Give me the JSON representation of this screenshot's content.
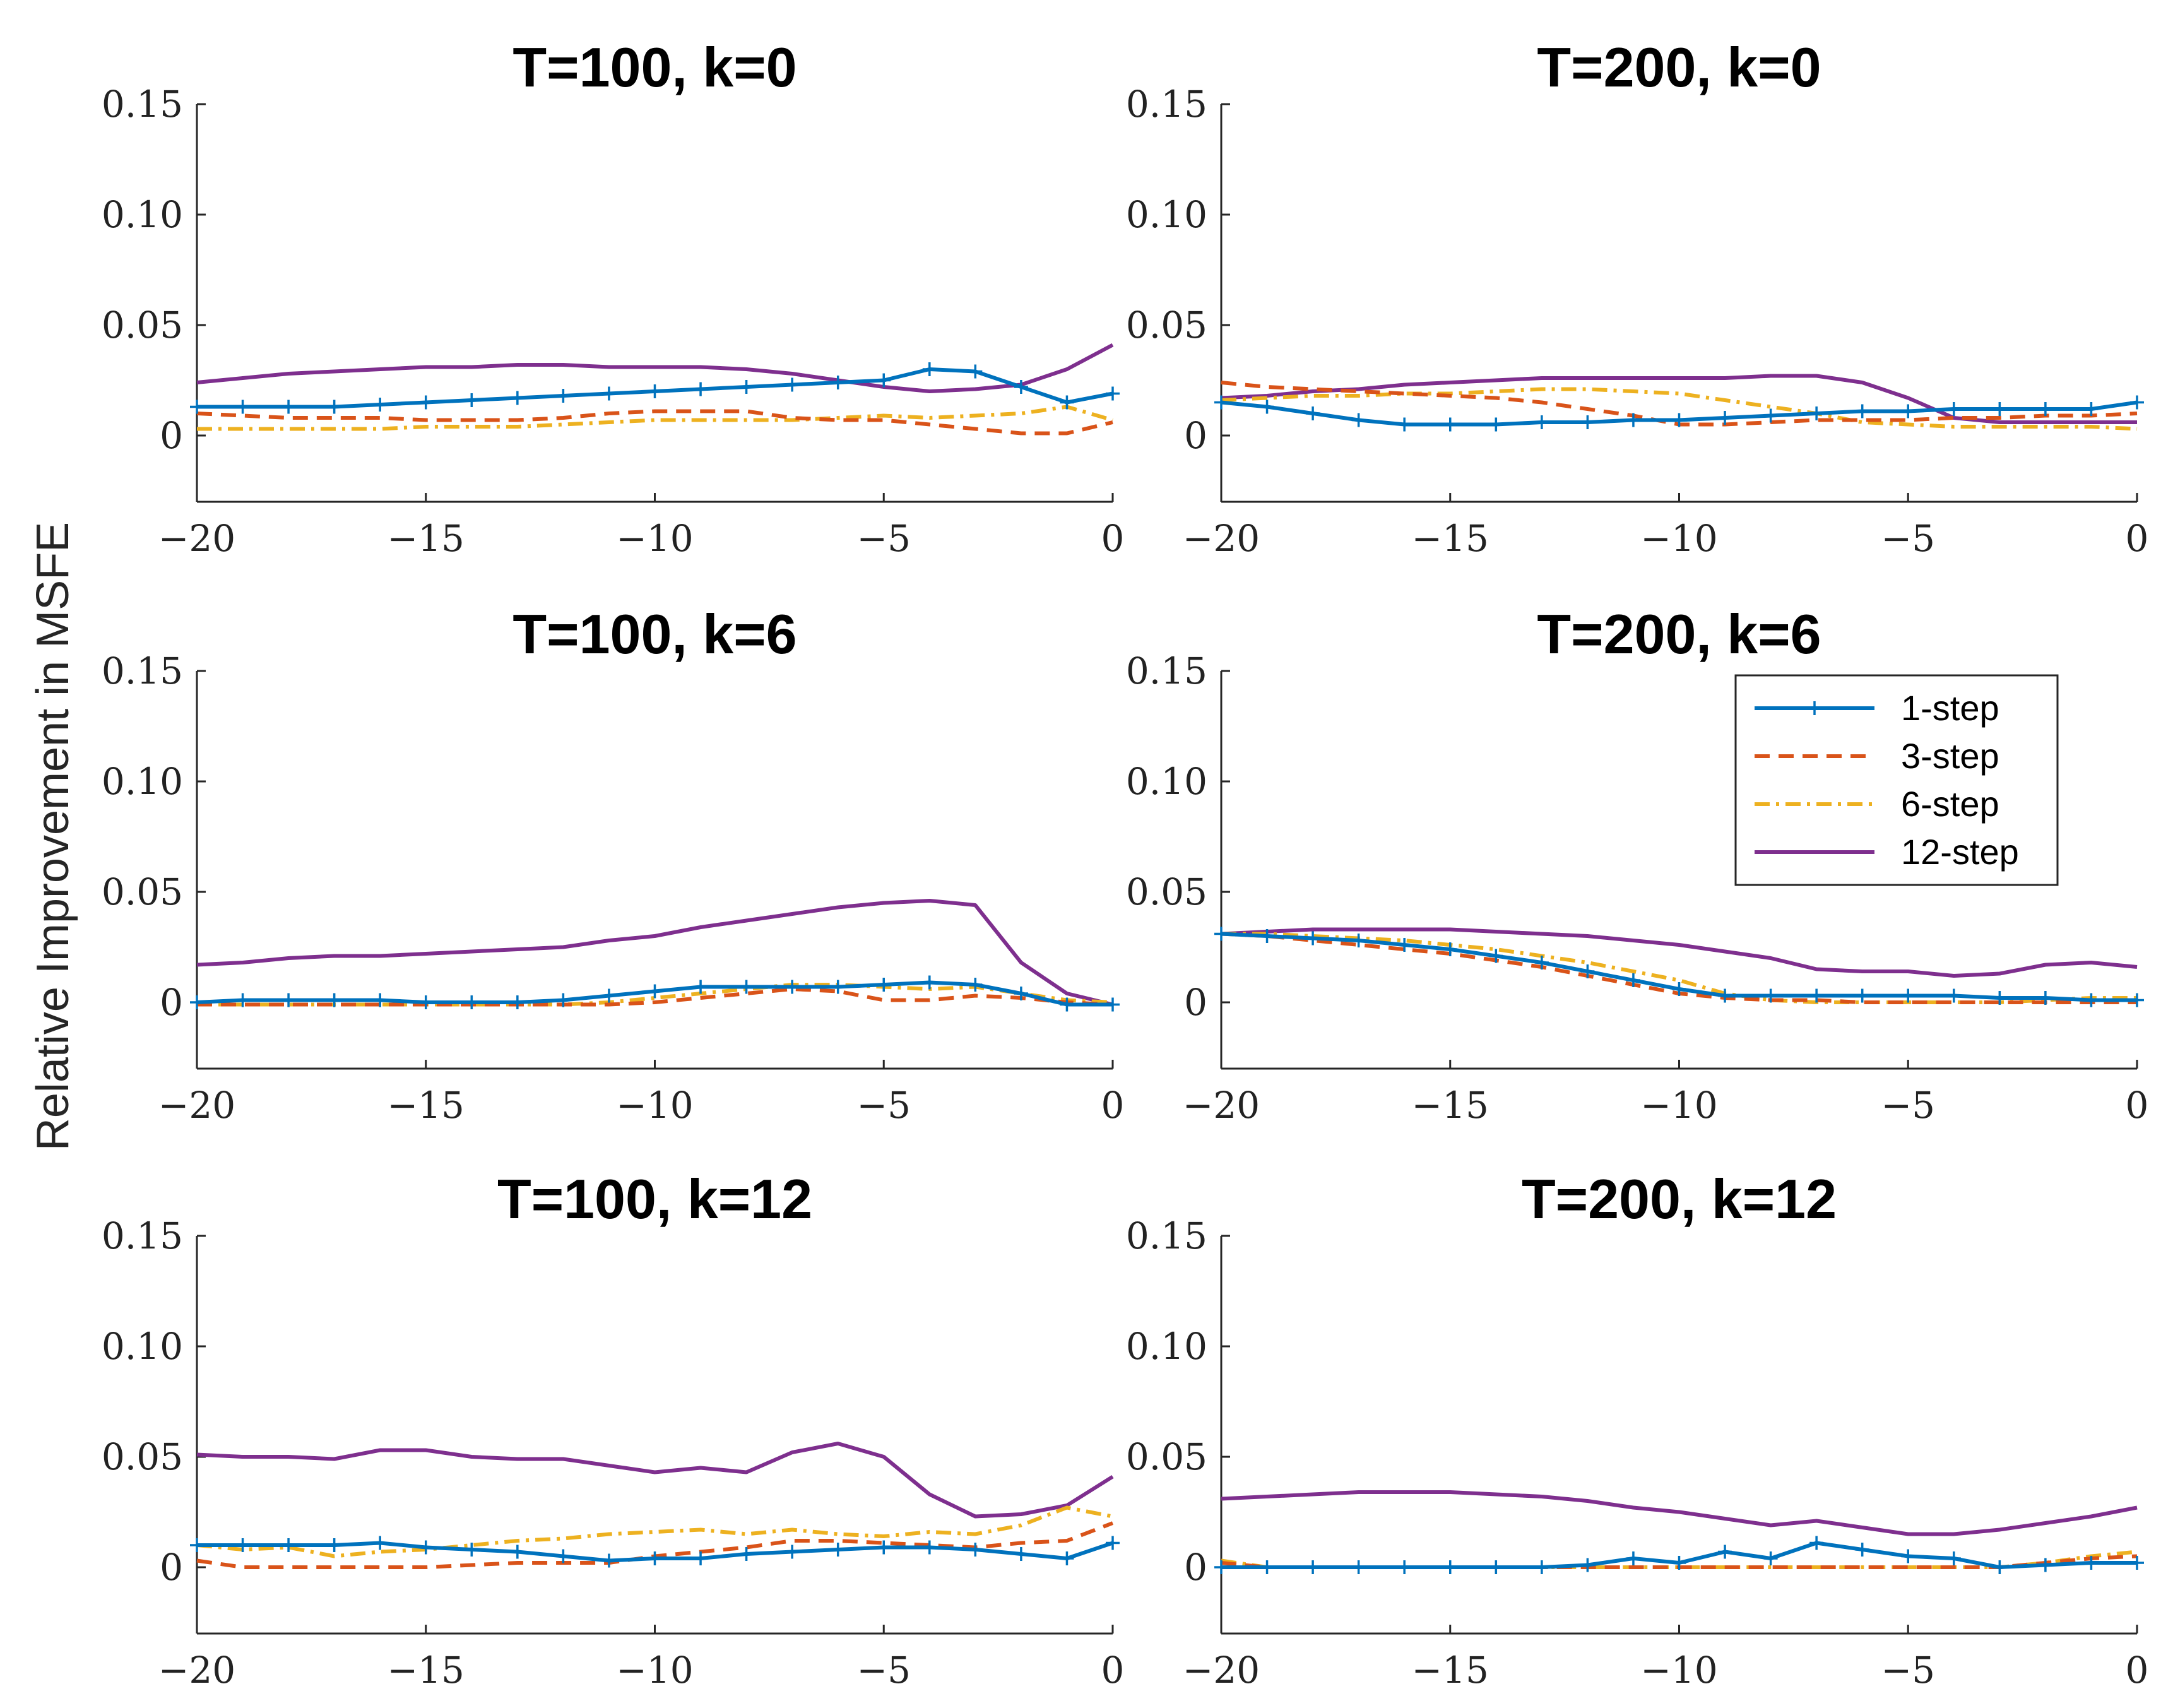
{
  "figure": {
    "ylabel": "Relative Improvement in MSFE",
    "x_tick_labels": [
      "−20",
      "−15",
      "−10",
      "−5",
      "0"
    ],
    "y_tick_labels": [
      "0",
      "0.05",
      "0.10",
      "0.15"
    ],
    "legend": [
      {
        "name": "1-step",
        "color": "#0072BD",
        "style": "solid-plus"
      },
      {
        "name": "3-step",
        "color": "#D95319",
        "style": "dashed"
      },
      {
        "name": "6-step",
        "color": "#EDB120",
        "style": "dashdot"
      },
      {
        "name": "12-step",
        "color": "#7E2F8E",
        "style": "solid"
      }
    ]
  },
  "chart_data": [
    {
      "type": "line",
      "title": "T=100, k=0",
      "xlabel": "",
      "ylabel": "Relative Improvement in MSFE",
      "xlim": [
        -20,
        0
      ],
      "ylim": [
        -0.03,
        0.15
      ],
      "x": [
        -20,
        -19,
        -18,
        -17,
        -16,
        -15,
        -14,
        -13,
        -12,
        -11,
        -10,
        -9,
        -8,
        -7,
        -6,
        -5,
        -4,
        -3,
        -2,
        -1,
        0
      ],
      "series": [
        {
          "name": "1-step",
          "values": [
            0.013,
            0.013,
            0.013,
            0.013,
            0.014,
            0.015,
            0.016,
            0.017,
            0.018,
            0.019,
            0.02,
            0.021,
            0.022,
            0.023,
            0.024,
            0.025,
            0.03,
            0.029,
            0.022,
            0.015,
            0.019
          ]
        },
        {
          "name": "3-step",
          "values": [
            0.01,
            0.009,
            0.008,
            0.008,
            0.008,
            0.007,
            0.007,
            0.007,
            0.008,
            0.01,
            0.011,
            0.011,
            0.011,
            0.008,
            0.007,
            0.007,
            0.005,
            0.003,
            0.001,
            0.001,
            0.006
          ]
        },
        {
          "name": "6-step",
          "values": [
            0.003,
            0.003,
            0.003,
            0.003,
            0.003,
            0.004,
            0.004,
            0.004,
            0.005,
            0.006,
            0.007,
            0.007,
            0.007,
            0.007,
            0.008,
            0.009,
            0.008,
            0.009,
            0.01,
            0.013,
            0.007
          ]
        },
        {
          "name": "12-step",
          "values": [
            0.024,
            0.026,
            0.028,
            0.029,
            0.03,
            0.031,
            0.031,
            0.032,
            0.032,
            0.031,
            0.031,
            0.031,
            0.03,
            0.028,
            0.025,
            0.022,
            0.02,
            0.021,
            0.023,
            0.03,
            0.041
          ]
        }
      ]
    },
    {
      "type": "line",
      "title": "T=200, k=0",
      "xlabel": "",
      "ylabel": "",
      "xlim": [
        -20,
        0
      ],
      "ylim": [
        -0.03,
        0.15
      ],
      "x": [
        -20,
        -19,
        -18,
        -17,
        -16,
        -15,
        -14,
        -13,
        -12,
        -11,
        -10,
        -9,
        -8,
        -7,
        -6,
        -5,
        -4,
        -3,
        -2,
        -1,
        0
      ],
      "series": [
        {
          "name": "1-step",
          "values": [
            0.015,
            0.013,
            0.01,
            0.007,
            0.005,
            0.005,
            0.005,
            0.006,
            0.006,
            0.007,
            0.007,
            0.008,
            0.009,
            0.01,
            0.011,
            0.011,
            0.012,
            0.012,
            0.012,
            0.012,
            0.015
          ]
        },
        {
          "name": "3-step",
          "values": [
            0.024,
            0.022,
            0.021,
            0.02,
            0.019,
            0.018,
            0.017,
            0.015,
            0.012,
            0.009,
            0.005,
            0.005,
            0.006,
            0.007,
            0.007,
            0.007,
            0.008,
            0.008,
            0.009,
            0.009,
            0.01
          ]
        },
        {
          "name": "6-step",
          "values": [
            0.016,
            0.017,
            0.018,
            0.018,
            0.019,
            0.019,
            0.02,
            0.021,
            0.021,
            0.02,
            0.019,
            0.016,
            0.013,
            0.01,
            0.006,
            0.005,
            0.004,
            0.004,
            0.004,
            0.004,
            0.003
          ]
        },
        {
          "name": "12-step",
          "values": [
            0.017,
            0.018,
            0.02,
            0.021,
            0.023,
            0.024,
            0.025,
            0.026,
            0.026,
            0.026,
            0.026,
            0.026,
            0.027,
            0.027,
            0.024,
            0.017,
            0.008,
            0.006,
            0.006,
            0.006,
            0.006
          ]
        }
      ]
    },
    {
      "type": "line",
      "title": "T=100, k=6",
      "xlabel": "",
      "ylabel": "",
      "xlim": [
        -20,
        0
      ],
      "ylim": [
        -0.03,
        0.15
      ],
      "x": [
        -20,
        -19,
        -18,
        -17,
        -16,
        -15,
        -14,
        -13,
        -12,
        -11,
        -10,
        -9,
        -8,
        -7,
        -6,
        -5,
        -4,
        -3,
        -2,
        -1,
        0
      ],
      "series": [
        {
          "name": "1-step",
          "values": [
            0.0,
            0.001,
            0.001,
            0.001,
            0.001,
            0.0,
            0.0,
            0.0,
            0.001,
            0.003,
            0.005,
            0.007,
            0.007,
            0.007,
            0.007,
            0.008,
            0.009,
            0.008,
            0.004,
            -0.001,
            -0.001
          ]
        },
        {
          "name": "3-step",
          "values": [
            -0.001,
            -0.001,
            -0.001,
            -0.001,
            -0.001,
            -0.001,
            -0.001,
            -0.001,
            -0.001,
            -0.001,
            0.0,
            0.002,
            0.004,
            0.006,
            0.005,
            0.001,
            0.001,
            0.003,
            0.002,
            0.0,
            -0.001
          ]
        },
        {
          "name": "6-step",
          "values": [
            -0.001,
            -0.001,
            -0.001,
            -0.001,
            -0.001,
            -0.001,
            -0.001,
            -0.001,
            -0.001,
            0.0,
            0.002,
            0.004,
            0.006,
            0.008,
            0.008,
            0.007,
            0.006,
            0.007,
            0.004,
            0.001,
            0.0
          ]
        },
        {
          "name": "12-step",
          "values": [
            0.017,
            0.018,
            0.02,
            0.021,
            0.021,
            0.022,
            0.023,
            0.024,
            0.025,
            0.028,
            0.03,
            0.034,
            0.037,
            0.04,
            0.043,
            0.045,
            0.046,
            0.044,
            0.018,
            0.004,
            -0.001
          ]
        }
      ]
    },
    {
      "type": "line",
      "title": "T=200, k=6",
      "xlabel": "",
      "ylabel": "",
      "xlim": [
        -20,
        0
      ],
      "ylim": [
        -0.03,
        0.15
      ],
      "x": [
        -20,
        -19,
        -18,
        -17,
        -16,
        -15,
        -14,
        -13,
        -12,
        -11,
        -10,
        -9,
        -8,
        -7,
        -6,
        -5,
        -4,
        -3,
        -2,
        -1,
        0
      ],
      "series": [
        {
          "name": "1-step",
          "values": [
            0.031,
            0.03,
            0.029,
            0.028,
            0.026,
            0.024,
            0.021,
            0.018,
            0.014,
            0.01,
            0.006,
            0.003,
            0.003,
            0.003,
            0.003,
            0.003,
            0.003,
            0.002,
            0.002,
            0.001,
            0.001
          ]
        },
        {
          "name": "3-step",
          "values": [
            0.031,
            0.03,
            0.028,
            0.026,
            0.024,
            0.022,
            0.019,
            0.016,
            0.012,
            0.008,
            0.004,
            0.002,
            0.001,
            0.001,
            0.0,
            0.0,
            0.0,
            0.0,
            0.0,
            0.0,
            0.0
          ]
        },
        {
          "name": "6-step",
          "values": [
            0.031,
            0.031,
            0.03,
            0.029,
            0.028,
            0.026,
            0.024,
            0.021,
            0.018,
            0.014,
            0.01,
            0.004,
            0.001,
            0.0,
            0.0,
            0.0,
            0.0,
            0.0,
            0.001,
            0.002,
            0.002
          ]
        },
        {
          "name": "12-step",
          "values": [
            0.031,
            0.032,
            0.033,
            0.033,
            0.033,
            0.033,
            0.032,
            0.031,
            0.03,
            0.028,
            0.026,
            0.023,
            0.02,
            0.015,
            0.014,
            0.014,
            0.012,
            0.013,
            0.017,
            0.018,
            0.016
          ]
        }
      ]
    },
    {
      "type": "line",
      "title": "T=100, k=12",
      "xlabel": "",
      "ylabel": "",
      "xlim": [
        -20,
        0
      ],
      "ylim": [
        -0.03,
        0.15
      ],
      "x": [
        -20,
        -19,
        -18,
        -17,
        -16,
        -15,
        -14,
        -13,
        -12,
        -11,
        -10,
        -9,
        -8,
        -7,
        -6,
        -5,
        -4,
        -3,
        -2,
        -1,
        0
      ],
      "series": [
        {
          "name": "1-step",
          "values": [
            0.01,
            0.01,
            0.01,
            0.01,
            0.011,
            0.009,
            0.008,
            0.007,
            0.005,
            0.003,
            0.004,
            0.004,
            0.006,
            0.007,
            0.008,
            0.009,
            0.009,
            0.008,
            0.006,
            0.004,
            0.011
          ]
        },
        {
          "name": "3-step",
          "values": [
            0.003,
            0.0,
            0.0,
            0.0,
            0.0,
            0.0,
            0.001,
            0.002,
            0.002,
            0.002,
            0.005,
            0.007,
            0.009,
            0.012,
            0.012,
            0.011,
            0.01,
            0.009,
            0.011,
            0.012,
            0.02
          ]
        },
        {
          "name": "6-step",
          "values": [
            0.01,
            0.008,
            0.009,
            0.005,
            0.007,
            0.008,
            0.01,
            0.012,
            0.013,
            0.015,
            0.016,
            0.017,
            0.015,
            0.017,
            0.015,
            0.014,
            0.016,
            0.015,
            0.019,
            0.027,
            0.023
          ]
        },
        {
          "name": "12-step",
          "values": [
            0.051,
            0.05,
            0.05,
            0.049,
            0.053,
            0.053,
            0.05,
            0.049,
            0.049,
            0.046,
            0.043,
            0.045,
            0.043,
            0.052,
            0.056,
            0.05,
            0.033,
            0.023,
            0.024,
            0.028,
            0.041
          ]
        }
      ]
    },
    {
      "type": "line",
      "title": "T=200, k=12",
      "xlabel": "",
      "ylabel": "",
      "xlim": [
        -20,
        0
      ],
      "ylim": [
        -0.03,
        0.15
      ],
      "x": [
        -20,
        -19,
        -18,
        -17,
        -16,
        -15,
        -14,
        -13,
        -12,
        -11,
        -10,
        -9,
        -8,
        -7,
        -6,
        -5,
        -4,
        -3,
        -2,
        -1,
        0
      ],
      "series": [
        {
          "name": "1-step",
          "values": [
            0.0,
            0.0,
            0.0,
            0.0,
            0.0,
            0.0,
            0.0,
            0.0,
            0.001,
            0.004,
            0.002,
            0.007,
            0.004,
            0.011,
            0.008,
            0.005,
            0.004,
            0.0,
            0.001,
            0.002,
            0.002
          ]
        },
        {
          "name": "3-step",
          "values": [
            0.002,
            0.0,
            0.0,
            0.0,
            0.0,
            0.0,
            0.0,
            0.0,
            0.0,
            0.0,
            0.0,
            0.0,
            0.0,
            0.0,
            0.0,
            0.0,
            0.0,
            0.0,
            0.002,
            0.004,
            0.005
          ]
        },
        {
          "name": "6-step",
          "values": [
            0.003,
            0.0,
            0.0,
            0.0,
            0.0,
            0.0,
            0.0,
            0.0,
            0.0,
            0.0,
            0.0,
            0.0,
            0.0,
            0.0,
            0.0,
            0.0,
            0.0,
            0.0,
            0.002,
            0.005,
            0.007
          ]
        },
        {
          "name": "12-step",
          "values": [
            0.031,
            0.032,
            0.033,
            0.034,
            0.034,
            0.034,
            0.033,
            0.032,
            0.03,
            0.027,
            0.025,
            0.022,
            0.019,
            0.021,
            0.018,
            0.015,
            0.015,
            0.017,
            0.02,
            0.023,
            0.027
          ]
        }
      ]
    }
  ]
}
